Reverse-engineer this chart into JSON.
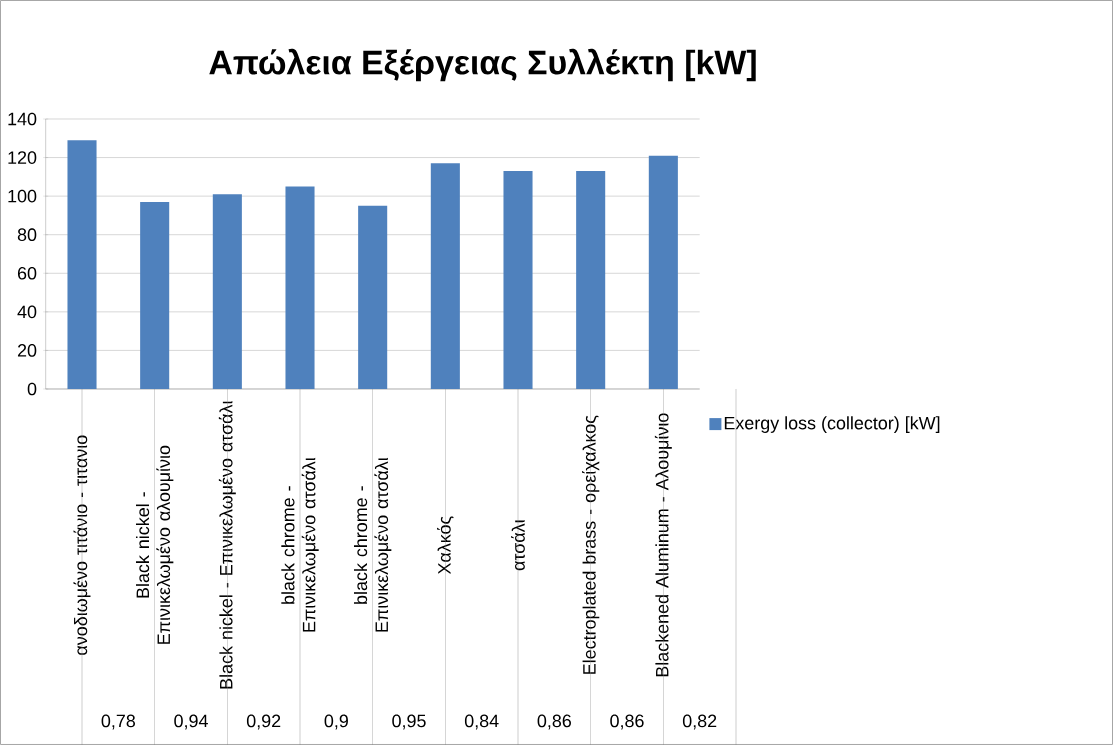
{
  "chart_data": {
    "type": "bar",
    "title": "Απώλεια Εξέργειας Συλλέκτη [kW]",
    "categories": [
      "ανοδιωμένο τιτάνιο - τιτανιο",
      "Black nickel - Επινικελωμένο αλουμίνιο",
      "Black nickel - Επινικελωμένο ατσάλι",
      "black chrome - Επινικελωμένο ατσάλι",
      "black chrome - Επινικελωμένο ατσάλι",
      "Χαλκός",
      "ατσάλι",
      "Electroplated brass - ορείχαλκος",
      "Blackened Aluminum - Αλουμίνιο"
    ],
    "series": [
      {
        "name": "Exergy loss (collector) [kW]",
        "color": "#4f81bd",
        "values": [
          129,
          97,
          101,
          105,
          95,
          117,
          113,
          113,
          121
        ]
      }
    ],
    "annotations": [
      "0,78",
      "0,94",
      "0,92",
      "0,9",
      "0,95",
      "0,84",
      "0,86",
      "0,86",
      "0,82"
    ],
    "ylim": [
      0,
      140
    ],
    "yticks": [
      0,
      20,
      40,
      60,
      80,
      100,
      120,
      140
    ],
    "grid": "y",
    "legend": "right"
  }
}
